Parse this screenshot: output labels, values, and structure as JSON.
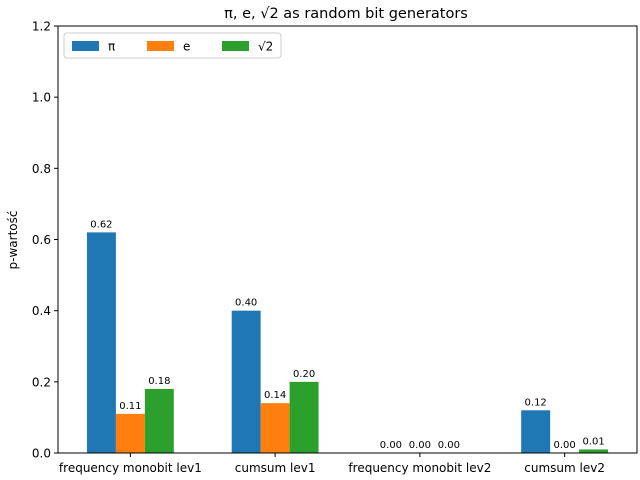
{
  "chart_data": {
    "type": "bar",
    "title": "π, e, √2 as random bit generators",
    "xlabel": "",
    "ylabel": "p-wartość",
    "ylim": [
      0,
      1.2
    ],
    "yticks": [
      "0.0",
      "0.2",
      "0.4",
      "0.6",
      "0.8",
      "1.0",
      "1.2"
    ],
    "categories": [
      "frequency monobit lev1",
      "cumsum lev1",
      "frequency monobit lev2",
      "cumsum lev2"
    ],
    "series": [
      {
        "name": "π",
        "color": "#1f77b4",
        "values": [
          0.62,
          0.4,
          0.0,
          0.12
        ],
        "labels": [
          "0.62",
          "0.40",
          "0.00",
          "0.12"
        ]
      },
      {
        "name": "e",
        "color": "#ff7f0e",
        "values": [
          0.11,
          0.14,
          0.0,
          0.0
        ],
        "labels": [
          "0.11",
          "0.14",
          "0.00",
          "0.00"
        ]
      },
      {
        "name": "√2",
        "color": "#2ca02c",
        "values": [
          0.18,
          0.2,
          0.0,
          0.01
        ],
        "labels": [
          "0.18",
          "0.20",
          "0.00",
          "0.01"
        ]
      }
    ],
    "legend_position": "top-left",
    "grid": false
  }
}
